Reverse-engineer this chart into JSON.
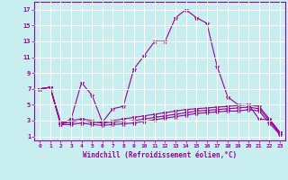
{
  "xlabel": "Windchill (Refroidissement éolien,°C)",
  "background_color": "#c8eef0",
  "line_color": "#990099",
  "grid_color": "#ffffff",
  "xlim": [
    -0.5,
    23.5
  ],
  "ylim": [
    0.5,
    18
  ],
  "xticks": [
    0,
    1,
    2,
    3,
    4,
    5,
    6,
    7,
    8,
    9,
    10,
    11,
    12,
    13,
    14,
    15,
    16,
    17,
    18,
    19,
    20,
    21,
    22,
    23
  ],
  "yticks": [
    1,
    3,
    5,
    7,
    9,
    11,
    13,
    15,
    17
  ],
  "series": [
    [
      7,
      7.2,
      2.5,
      3.2,
      7.8,
      6.2,
      2.8,
      4.5,
      4.8,
      9.5,
      11.2,
      13.0,
      13.0,
      16.0,
      17.0,
      16.0,
      15.3,
      9.8,
      6.0,
      5.0,
      5.0,
      3.2,
      3.1,
      1.5
    ],
    [
      7,
      7.2,
      2.8,
      3.0,
      3.2,
      3.0,
      2.8,
      3.0,
      3.2,
      3.4,
      3.6,
      3.8,
      4.0,
      4.2,
      4.4,
      4.5,
      4.6,
      4.7,
      4.8,
      4.9,
      5.0,
      4.8,
      3.2,
      1.5
    ],
    [
      7,
      7.2,
      2.6,
      2.8,
      3.0,
      2.8,
      2.7,
      2.8,
      2.9,
      3.0,
      3.2,
      3.4,
      3.6,
      3.8,
      4.0,
      4.2,
      4.3,
      4.4,
      4.5,
      4.6,
      4.7,
      4.5,
      3.0,
      1.3
    ],
    [
      7,
      7.2,
      2.5,
      2.5,
      2.7,
      2.5,
      2.4,
      2.5,
      2.6,
      2.7,
      2.9,
      3.1,
      3.3,
      3.5,
      3.7,
      3.9,
      4.0,
      4.1,
      4.2,
      4.2,
      4.4,
      4.2,
      2.7,
      1.2
    ]
  ]
}
